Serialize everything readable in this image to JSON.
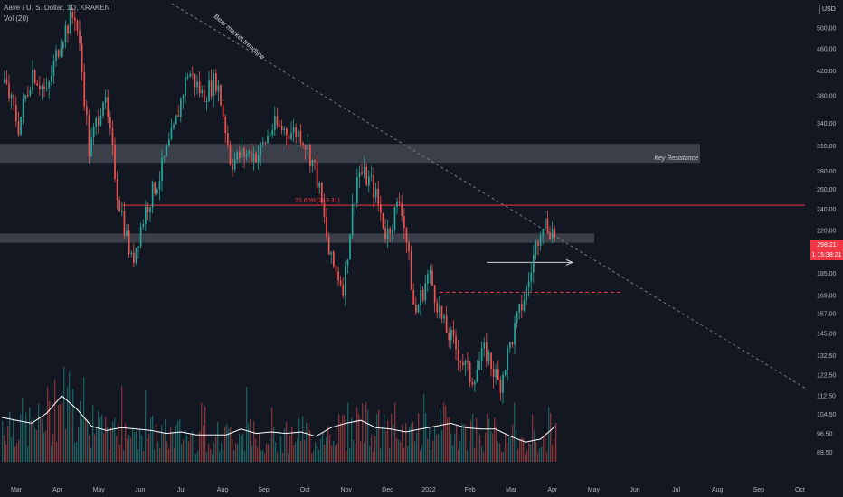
{
  "legend": {
    "symbol": "Aave / U. S. Dollar, 1D, KRAKEN",
    "volume": "Vol (20)"
  },
  "currency": "USD",
  "last_price_tag": [
    "298.21",
    "1 15:38:21"
  ],
  "colors": {
    "background": "#131722",
    "up": "#26a69a",
    "down": "#ef5350",
    "trendline": "#787b86",
    "fib_line": "#f23645",
    "zone": "#4a4d57",
    "volume_ma": "#ffffff",
    "arrow": "#d1d4dc"
  },
  "chart_data": {
    "type": "candlestick",
    "y_axis": {
      "scale": "log",
      "ylim": [
        86,
        545
      ],
      "ticks": [
        "500.00",
        "460.00",
        "420.00",
        "380.00",
        "340.00",
        "310.00",
        "280.00",
        "260.00",
        "240.00",
        "220.00",
        "185.00",
        "169.00",
        "157.00",
        "145.00",
        "132.50",
        "122.50",
        "112.50",
        "104.50",
        "96.50",
        "89.50"
      ]
    },
    "x_axis": {
      "ticks": [
        "Mar",
        "Apr",
        "May",
        "Jun",
        "Jul",
        "Aug",
        "Sep",
        "Oct",
        "Nov",
        "Dec",
        "2022",
        "Feb",
        "Mar",
        "Apr",
        "May",
        "Jun",
        "Jul",
        "Aug",
        "Sep",
        "Oct"
      ]
    },
    "price_path": [
      {
        "date": "Mar",
        "price": 400
      },
      {
        "date": "Mar",
        "price": 335
      },
      {
        "date": "Apr",
        "price": 420
      },
      {
        "date": "Apr",
        "price": 380
      },
      {
        "date": "May",
        "price": 480
      },
      {
        "date": "May",
        "price": 530
      },
      {
        "date": "May",
        "price": 300
      },
      {
        "date": "Jun",
        "price": 380
      },
      {
        "date": "Jun",
        "price": 255
      },
      {
        "date": "Jun",
        "price": 192
      },
      {
        "date": "Jul",
        "price": 240
      },
      {
        "date": "Jul",
        "price": 275
      },
      {
        "date": "Aug",
        "price": 330
      },
      {
        "date": "Aug",
        "price": 420
      },
      {
        "date": "Sep",
        "price": 380
      },
      {
        "date": "Sep",
        "price": 405
      },
      {
        "date": "Sep",
        "price": 290
      },
      {
        "date": "Oct",
        "price": 300
      },
      {
        "date": "Oct",
        "price": 300
      },
      {
        "date": "Oct",
        "price": 335
      },
      {
        "date": "Nov",
        "price": 330
      },
      {
        "date": "Nov",
        "price": 325
      },
      {
        "date": "Nov",
        "price": 280
      },
      {
        "date": "Dec",
        "price": 195
      },
      {
        "date": "Dec",
        "price": 175
      },
      {
        "date": "Dec",
        "price": 280
      },
      {
        "date": "2022",
        "price": 265
      },
      {
        "date": "2022",
        "price": 215
      },
      {
        "date": "Jan",
        "price": 250
      },
      {
        "date": "Jan",
        "price": 155
      },
      {
        "date": "Feb",
        "price": 185
      },
      {
        "date": "Feb",
        "price": 150
      },
      {
        "date": "Feb",
        "price": 135
      },
      {
        "date": "Mar",
        "price": 120
      },
      {
        "date": "Mar",
        "price": 135
      },
      {
        "date": "Mar",
        "price": 117
      },
      {
        "date": "Mar",
        "price": 145
      },
      {
        "date": "Apr",
        "price": 175
      },
      {
        "date": "Apr",
        "price": 230
      },
      {
        "date": "Apr",
        "price": 215
      }
    ],
    "volume_ma_path": [
      30,
      28,
      26,
      33,
      45,
      36,
      24,
      21,
      23,
      22,
      21,
      19,
      20,
      18,
      18,
      18,
      22,
      19,
      20,
      19,
      20,
      17,
      23,
      26,
      28,
      23,
      22,
      20,
      22,
      24,
      26,
      23,
      22,
      22,
      17,
      13,
      15,
      24
    ],
    "annotations": {
      "trendline_label": "Bear market trendline",
      "zone_label": "Key Resistance",
      "fib_label": "23.60%(243.31)",
      "fib_value": 243.31,
      "upper_zone": [
        289,
        312
      ],
      "lower_zone": [
        209,
        217
      ],
      "fib_start_date": "Jun",
      "dashed_level": 171,
      "dashed_line_start_date": "Jan",
      "arrow_level": 193,
      "arrow_start_date": "Feb",
      "trendline_end": {
        "date": "Oct",
        "price": 116
      }
    }
  }
}
